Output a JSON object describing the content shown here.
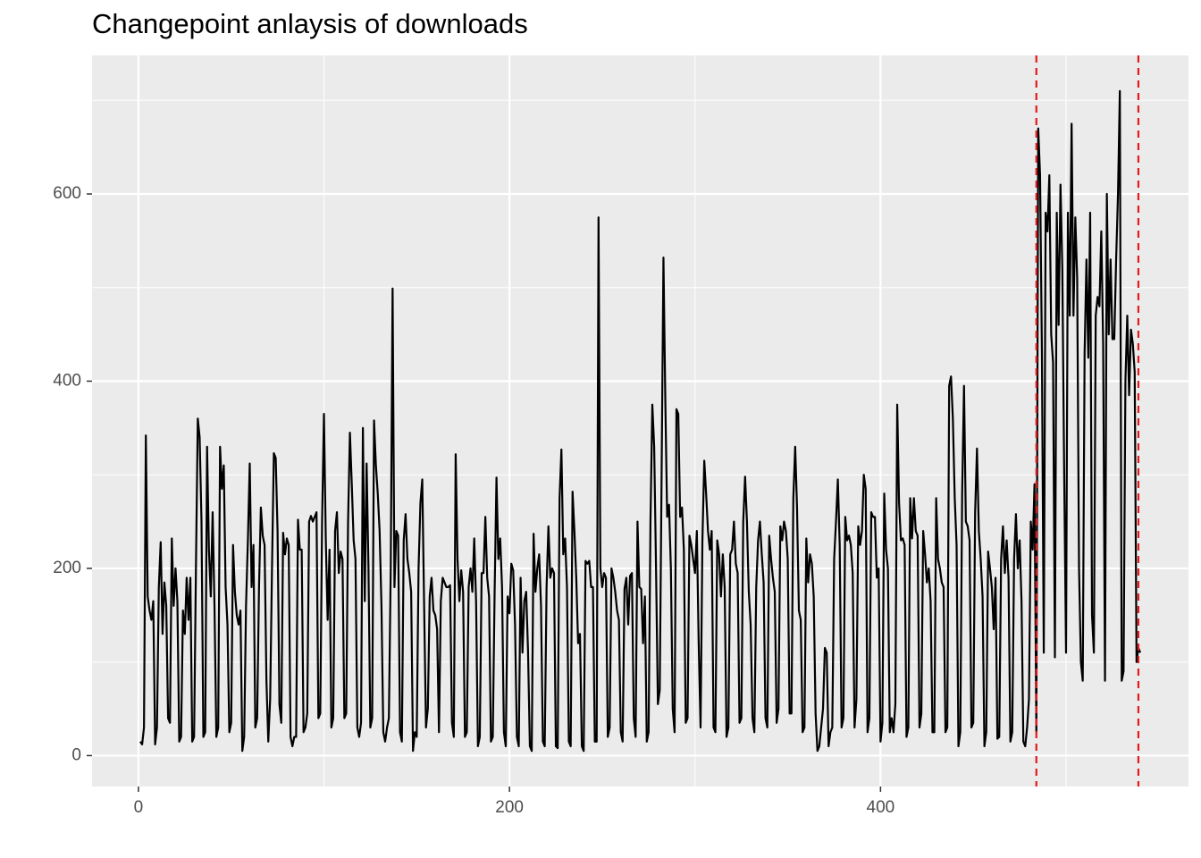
{
  "chart_data": {
    "type": "line",
    "title": "Changepoint anlaysis of downloads",
    "color": "#000000",
    "changepoints": [
      484,
      539
    ],
    "changepoint_color": "#e31a1c",
    "xlim": [
      -25,
      566
    ],
    "ylim": [
      -33,
      748
    ],
    "xticks": [
      0,
      200,
      400
    ],
    "yticks": [
      0,
      200,
      400,
      600
    ],
    "x_minor_ticks": [
      100,
      300,
      500
    ],
    "y_minor_ticks": [
      100,
      300,
      500,
      700
    ],
    "grid": true,
    "x": [
      1,
      2,
      3,
      4,
      5,
      6,
      7,
      8,
      9,
      10,
      11,
      12,
      13,
      14,
      15,
      16,
      17,
      18,
      19,
      20,
      21,
      22,
      23,
      24,
      25,
      26,
      27,
      28,
      29,
      30,
      31,
      32,
      33,
      34,
      35,
      36,
      37,
      38,
      39,
      40,
      41,
      42,
      43,
      44,
      45,
      46,
      47,
      48,
      49,
      50,
      51,
      52,
      53,
      54,
      55,
      56,
      57,
      58,
      59,
      60,
      61,
      62,
      63,
      64,
      65,
      66,
      67,
      68,
      69,
      70,
      71,
      72,
      73,
      74,
      75,
      76,
      77,
      78,
      79,
      80,
      81,
      82,
      83,
      84,
      85,
      86,
      87,
      88,
      89,
      90,
      91,
      92,
      93,
      94,
      95,
      96,
      97,
      98,
      99,
      100,
      101,
      102,
      103,
      104,
      105,
      106,
      107,
      108,
      109,
      110,
      111,
      112,
      113,
      114,
      115,
      116,
      117,
      118,
      119,
      120,
      121,
      122,
      123,
      124,
      125,
      126,
      127,
      128,
      129,
      130,
      131,
      132,
      133,
      134,
      135,
      136,
      137,
      138,
      139,
      140,
      141,
      142,
      143,
      144,
      145,
      146,
      147,
      148,
      149,
      150,
      151,
      152,
      153,
      154,
      155,
      156,
      157,
      158,
      159,
      160,
      161,
      162,
      163,
      164,
      165,
      166,
      167,
      168,
      169,
      170,
      171,
      172,
      173,
      174,
      175,
      176,
      177,
      178,
      179,
      180,
      181,
      182,
      183,
      184,
      185,
      186,
      187,
      188,
      189,
      190,
      191,
      192,
      193,
      194,
      195,
      196,
      197,
      198,
      199,
      200,
      201,
      202,
      203,
      204,
      205,
      206,
      207,
      208,
      209,
      210,
      211,
      212,
      213,
      214,
      215,
      216,
      217,
      218,
      219,
      220,
      221,
      222,
      223,
      224,
      225,
      226,
      227,
      228,
      229,
      230,
      231,
      232,
      233,
      234,
      235,
      236,
      237,
      238,
      239,
      240,
      241,
      242,
      243,
      244,
      245,
      246,
      247,
      248,
      249,
      250,
      251,
      252,
      253,
      254,
      255,
      256,
      257,
      258,
      259,
      260,
      261,
      262,
      263,
      264,
      265,
      266,
      267,
      268,
      269,
      270,
      271,
      272,
      273,
      274,
      275,
      276,
      277,
      278,
      279,
      280,
      281,
      282,
      283,
      284,
      285,
      286,
      287,
      288,
      289,
      290,
      291,
      292,
      293,
      294,
      295,
      296,
      297,
      298,
      299,
      300,
      301,
      302,
      303,
      304,
      305,
      306,
      307,
      308,
      309,
      310,
      311,
      312,
      313,
      314,
      315,
      316,
      317,
      318,
      319,
      320,
      321,
      322,
      323,
      324,
      325,
      326,
      327,
      328,
      329,
      330,
      331,
      332,
      333,
      334,
      335,
      336,
      337,
      338,
      339,
      340,
      341,
      342,
      343,
      344,
      345,
      346,
      347,
      348,
      349,
      350,
      351,
      352,
      353,
      354,
      355,
      356,
      357,
      358,
      359,
      360,
      361,
      362,
      363,
      364,
      365,
      366,
      367,
      368,
      369,
      370,
      371,
      372,
      373,
      374,
      375,
      376,
      377,
      378,
      379,
      380,
      381,
      382,
      383,
      384,
      385,
      386,
      387,
      388,
      389,
      390,
      391,
      392,
      393,
      394,
      395,
      396,
      397,
      398,
      399,
      400,
      401,
      402,
      403,
      404,
      405,
      406,
      407,
      408,
      409,
      410,
      411,
      412,
      413,
      414,
      415,
      416,
      417,
      418,
      419,
      420,
      421,
      422,
      423,
      424,
      425,
      426,
      427,
      428,
      429,
      430,
      431,
      432,
      433,
      434,
      435,
      436,
      437,
      438,
      439,
      440,
      441,
      442,
      443,
      444,
      445,
      446,
      447,
      448,
      449,
      450,
      451,
      452,
      453,
      454,
      455,
      456,
      457,
      458,
      459,
      460,
      461,
      462,
      463,
      464,
      465,
      466,
      467,
      468,
      469,
      470,
      471,
      472,
      473,
      474,
      475,
      476,
      477,
      478,
      479,
      480,
      481,
      482,
      483,
      484,
      485,
      486,
      487,
      488,
      489,
      490,
      491,
      492,
      493,
      494,
      495,
      496,
      497,
      498,
      499,
      500,
      501,
      502,
      503,
      504,
      505,
      506,
      507,
      508,
      509,
      510,
      511,
      512,
      513,
      514,
      515,
      516,
      517,
      518,
      519,
      520,
      521,
      522,
      523,
      524,
      525,
      526,
      527,
      528,
      529,
      530,
      531,
      532,
      533,
      534,
      535,
      536,
      537,
      538,
      539,
      540
    ],
    "values": [
      15,
      12,
      30,
      342,
      170,
      155,
      145,
      165,
      12,
      30,
      180,
      228,
      130,
      185,
      160,
      40,
      35,
      232,
      160,
      200,
      165,
      15,
      20,
      155,
      130,
      190,
      145,
      190,
      15,
      20,
      200,
      360,
      340,
      250,
      20,
      25,
      330,
      220,
      170,
      260,
      160,
      20,
      30,
      330,
      285,
      310,
      180,
      140,
      25,
      35,
      225,
      175,
      150,
      140,
      155,
      5,
      20,
      160,
      230,
      312,
      180,
      225,
      30,
      40,
      180,
      265,
      235,
      225,
      80,
      15,
      60,
      200,
      323,
      318,
      240,
      55,
      35,
      238,
      215,
      232,
      225,
      20,
      10,
      20,
      20,
      252,
      220,
      220,
      25,
      30,
      45,
      250,
      256,
      250,
      255,
      260,
      40,
      45,
      250,
      365,
      230,
      145,
      220,
      30,
      40,
      240,
      260,
      195,
      218,
      210,
      40,
      45,
      250,
      345,
      290,
      230,
      210,
      30,
      20,
      35,
      350,
      165,
      312,
      200,
      30,
      40,
      358,
      310,
      280,
      240,
      160,
      25,
      15,
      30,
      40,
      200,
      499,
      180,
      240,
      235,
      25,
      15,
      230,
      258,
      210,
      195,
      175,
      5,
      25,
      20,
      200,
      270,
      295,
      160,
      30,
      50,
      170,
      190,
      155,
      150,
      135,
      25,
      165,
      190,
      185,
      180,
      180,
      182,
      35,
      20,
      322,
      210,
      165,
      198,
      175,
      20,
      25,
      180,
      200,
      175,
      232,
      165,
      10,
      20,
      195,
      195,
      255,
      190,
      170,
      15,
      20,
      175,
      297,
      210,
      232,
      180,
      25,
      10,
      170,
      152,
      205,
      198,
      140,
      20,
      10,
      190,
      110,
      165,
      175,
      112,
      10,
      5,
      237,
      175,
      200,
      215,
      160,
      15,
      10,
      180,
      245,
      190,
      200,
      195,
      10,
      8,
      275,
      327,
      215,
      232,
      180,
      15,
      10,
      282,
      240,
      190,
      120,
      130,
      10,
      5,
      208,
      205,
      208,
      180,
      180,
      15,
      15,
      575,
      200,
      180,
      195,
      190,
      20,
      30,
      200,
      190,
      175,
      155,
      145,
      25,
      15,
      178,
      190,
      140,
      192,
      195,
      40,
      20,
      250,
      180,
      178,
      120,
      170,
      15,
      25,
      250,
      375,
      330,
      200,
      55,
      70,
      300,
      532,
      380,
      255,
      268,
      200,
      50,
      25,
      370,
      365,
      255,
      265,
      220,
      35,
      40,
      235,
      225,
      210,
      195,
      240,
      120,
      30,
      230,
      315,
      280,
      240,
      220,
      240,
      30,
      25,
      230,
      215,
      170,
      215,
      180,
      20,
      30,
      215,
      220,
      250,
      205,
      195,
      35,
      40,
      250,
      298,
      250,
      175,
      140,
      40,
      25,
      180,
      230,
      250,
      215,
      185,
      40,
      30,
      235,
      210,
      190,
      175,
      35,
      50,
      245,
      230,
      250,
      240,
      210,
      45,
      45,
      275,
      330,
      265,
      155,
      145,
      25,
      30,
      232,
      185,
      215,
      205,
      170,
      45,
      5,
      10,
      30,
      50,
      115,
      110,
      10,
      25,
      30,
      210,
      250,
      295,
      225,
      30,
      40,
      255,
      230,
      235,
      225,
      195,
      30,
      60,
      245,
      225,
      240,
      300,
      285,
      25,
      40,
      260,
      255,
      255,
      190,
      200,
      15,
      35,
      280,
      220,
      200,
      25,
      40,
      25,
      55,
      375,
      270,
      230,
      232,
      225,
      20,
      30,
      275,
      232,
      275,
      240,
      235,
      30,
      45,
      240,
      215,
      185,
      200,
      165,
      25,
      25,
      275,
      210,
      200,
      185,
      180,
      25,
      30,
      395,
      405,
      360,
      275,
      225,
      10,
      25,
      280,
      395,
      250,
      245,
      230,
      30,
      35,
      260,
      328,
      240,
      210,
      170,
      10,
      25,
      218,
      200,
      180,
      135,
      190,
      18,
      20,
      210,
      245,
      195,
      230,
      190,
      15,
      25,
      210,
      258,
      200,
      230,
      165,
      15,
      10,
      30,
      60,
      250,
      220,
      290,
      25,
      670,
      620,
      430,
      110,
      580,
      560,
      620,
      450,
      420,
      105,
      580,
      460,
      610,
      520,
      300,
      110,
      580,
      470,
      675,
      470,
      575,
      510,
      200,
      100,
      80,
      430,
      530,
      425,
      580,
      150,
      110,
      470,
      490,
      480,
      560,
      440,
      80,
      600,
      450,
      530,
      445,
      445,
      530,
      600,
      710,
      80,
      90,
      400,
      470,
      385,
      455,
      440,
      410,
      100,
      115,
      110
    ]
  }
}
